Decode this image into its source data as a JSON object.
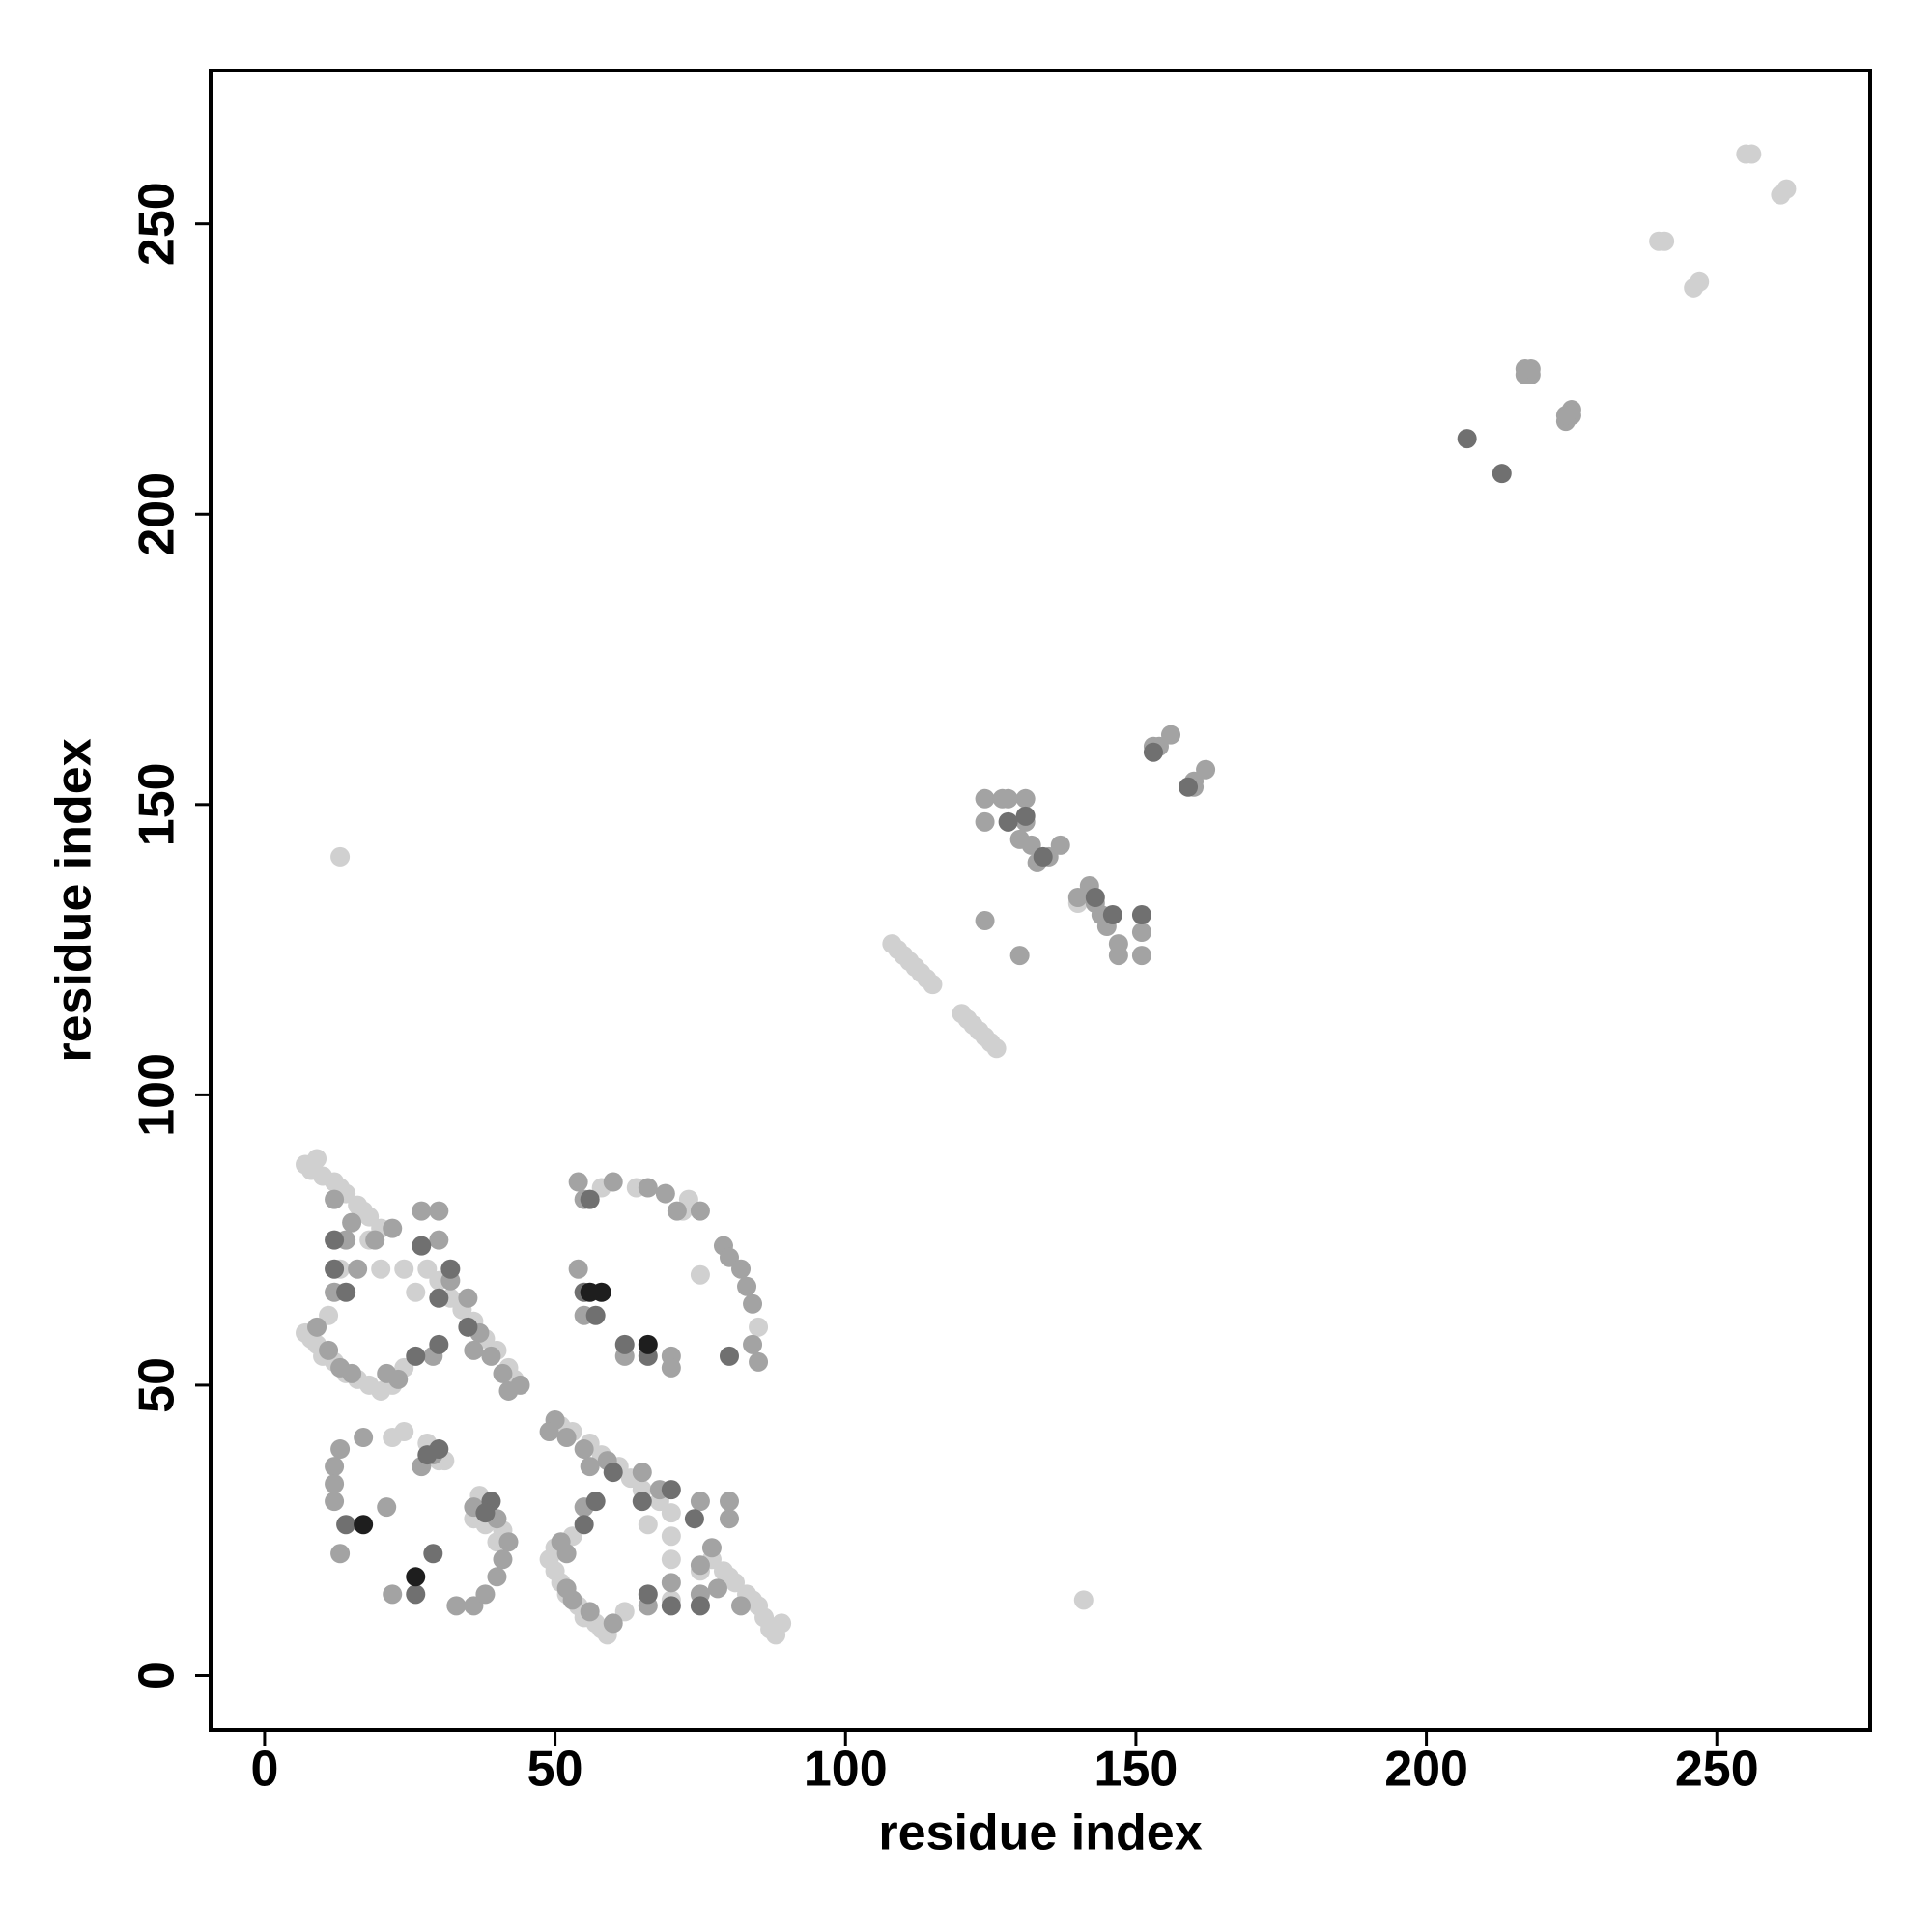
{
  "chart_data": {
    "type": "scatter",
    "x_label": "residue index",
    "y_label": "residue index",
    "xlim": [
      -9.3,
      276.4
    ],
    "ylim": [
      -9.4,
      276.4
    ],
    "xticks": [
      0,
      50,
      100,
      150,
      200,
      250
    ],
    "yticks": [
      0,
      50,
      100,
      150,
      200,
      250
    ],
    "series": [
      {
        "color": "#d0d0d0",
        "x": [
          255,
          256,
          262,
          261,
          240,
          241,
          247,
          246,
          108,
          109,
          110,
          111,
          112,
          113,
          114,
          115,
          120,
          121,
          122,
          123,
          124,
          125,
          126,
          140,
          133,
          13,
          141,
          7,
          8,
          9,
          10,
          12,
          13,
          14,
          16,
          17,
          18,
          20,
          7,
          8,
          9,
          10,
          12,
          14,
          16,
          18,
          20,
          22,
          24,
          28,
          30,
          32,
          34,
          36,
          38,
          40,
          42,
          43,
          11,
          13,
          18,
          20,
          24,
          26,
          88,
          87,
          89,
          86,
          85,
          84,
          83,
          81,
          80,
          79,
          77,
          59,
          58,
          57,
          55,
          54,
          52,
          51,
          50,
          49,
          50,
          53,
          70,
          68,
          65,
          63,
          61,
          58,
          56,
          53,
          51,
          62,
          70,
          75,
          70,
          70,
          66,
          22,
          24,
          28,
          30,
          31,
          37,
          40,
          36,
          38,
          41,
          58,
          64,
          73,
          85,
          75,
          72
        ],
        "values": [
          262,
          262,
          256,
          255,
          247,
          247,
          240,
          239,
          126,
          125,
          124,
          123,
          122,
          121,
          120,
          119,
          114,
          113,
          112,
          111,
          110,
          109,
          108,
          133,
          140,
          141,
          13,
          88,
          87,
          89,
          86,
          85,
          84,
          83,
          81,
          80,
          79,
          77,
          59,
          58,
          57,
          55,
          54,
          52,
          51,
          50,
          49,
          50,
          53,
          70,
          68,
          65,
          63,
          61,
          58,
          56,
          53,
          51,
          62,
          70,
          75,
          70,
          70,
          66,
          7,
          8,
          9,
          10,
          12,
          13,
          14,
          16,
          17,
          18,
          20,
          7,
          8,
          9,
          10,
          12,
          14,
          16,
          18,
          20,
          22,
          24,
          28,
          30,
          32,
          34,
          36,
          38,
          40,
          42,
          43,
          11,
          13,
          18,
          20,
          24,
          26,
          41,
          42,
          40,
          37,
          37,
          31,
          23,
          27,
          26,
          25,
          84,
          84,
          82,
          60,
          69,
          80
        ]
      },
      {
        "color": "#a3a3a3",
        "x": [
          218,
          217,
          225,
          224,
          218,
          225,
          217,
          224,
          124,
          124,
          127,
          128,
          131,
          131,
          130,
          132,
          133,
          135,
          137,
          140,
          142,
          143,
          144,
          145,
          147,
          147,
          151,
          151,
          124,
          130,
          153,
          154,
          156,
          160,
          160,
          162,
          12,
          15,
          19,
          22,
          27,
          30,
          30,
          32,
          35,
          37,
          39,
          41,
          44,
          12,
          14,
          9,
          11,
          13,
          15,
          21,
          23,
          29,
          16,
          36,
          42,
          82,
          78,
          75,
          77,
          80,
          80,
          75,
          68,
          65,
          59,
          55,
          52,
          50,
          66,
          75,
          60,
          56,
          53,
          52,
          52,
          51,
          55,
          70,
          56,
          49,
          54,
          55,
          60,
          66,
          69,
          71,
          75,
          79,
          80,
          82,
          83,
          84,
          84,
          85,
          54,
          55,
          62,
          70,
          70,
          12,
          12,
          12,
          13,
          21,
          22,
          27,
          29,
          33,
          36,
          38,
          40,
          41,
          42,
          40,
          36,
          17,
          13
        ],
        "values": [
          225,
          224,
          217,
          216,
          224,
          218,
          225,
          217,
          151,
          147,
          151,
          151,
          151,
          147,
          144,
          143,
          140,
          141,
          143,
          134,
          136,
          133,
          131,
          129,
          126,
          124,
          124,
          128,
          130,
          124,
          160,
          160,
          162,
          154,
          153,
          156,
          82,
          78,
          75,
          77,
          80,
          80,
          75,
          68,
          65,
          59,
          55,
          52,
          50,
          66,
          75,
          60,
          56,
          53,
          52,
          52,
          51,
          55,
          70,
          56,
          49,
          12,
          15,
          19,
          22,
          27,
          30,
          30,
          32,
          35,
          37,
          39,
          41,
          44,
          12,
          14,
          9,
          11,
          13,
          15,
          21,
          23,
          29,
          16,
          36,
          42,
          85,
          82,
          85,
          84,
          83,
          80,
          80,
          74,
          72,
          70,
          67,
          64,
          57,
          54,
          70,
          62,
          55,
          55,
          53,
          36,
          33,
          30,
          21,
          29,
          14,
          36,
          38,
          12,
          12,
          14,
          17,
          20,
          23,
          27,
          29,
          41,
          39
        ]
      },
      {
        "color": "#707070",
        "x": [
          207,
          213,
          128,
          131,
          134,
          143,
          146,
          151,
          153,
          159,
          12,
          14,
          26,
          30,
          32,
          27,
          30,
          35,
          12,
          70,
          66,
          55,
          57,
          70,
          74,
          65,
          60,
          75,
          56,
          80,
          62,
          57,
          55,
          66,
          14,
          26,
          29,
          39,
          30,
          38,
          28
        ],
        "values": [
          213,
          207,
          147,
          148,
          141,
          134,
          131,
          131,
          159,
          153,
          70,
          66,
          55,
          57,
          70,
          74,
          65,
          60,
          75,
          12,
          14,
          26,
          30,
          32,
          27,
          30,
          35,
          12,
          82,
          55,
          57,
          62,
          66,
          55,
          26,
          14,
          21,
          30,
          39,
          28,
          38
        ]
      },
      {
        "color": "#1e1e1e",
        "x": [
          56,
          58,
          66,
          17,
          26
        ],
        "values": [
          66,
          66,
          57,
          26,
          17
        ]
      }
    ]
  }
}
